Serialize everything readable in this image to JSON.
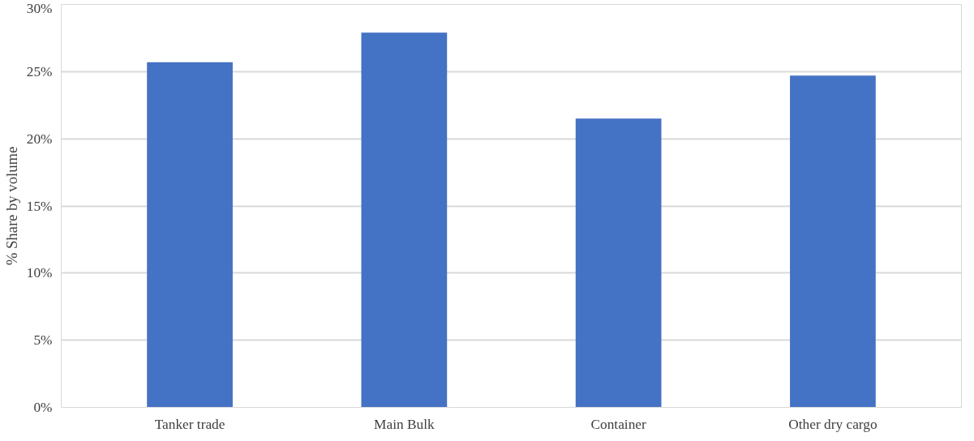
{
  "chart_data": {
    "type": "bar",
    "ylabel": "% Share by volume",
    "categories": [
      "Tanker trade",
      "Main Bulk",
      "Container",
      "Other dry cargo"
    ],
    "values": [
      25.7,
      27.9,
      21.5,
      24.7
    ],
    "color": "#4472c4",
    "ylim": [
      0,
      30
    ],
    "yticks": [
      {
        "value": 0,
        "label": "0%"
      },
      {
        "value": 5,
        "label": "5%"
      },
      {
        "value": 10,
        "label": "10%"
      },
      {
        "value": 15,
        "label": "15%"
      },
      {
        "value": 20,
        "label": "20%"
      },
      {
        "value": 25,
        "label": "25%"
      },
      {
        "value": 30,
        "label": "30%"
      }
    ],
    "grid": "y"
  }
}
